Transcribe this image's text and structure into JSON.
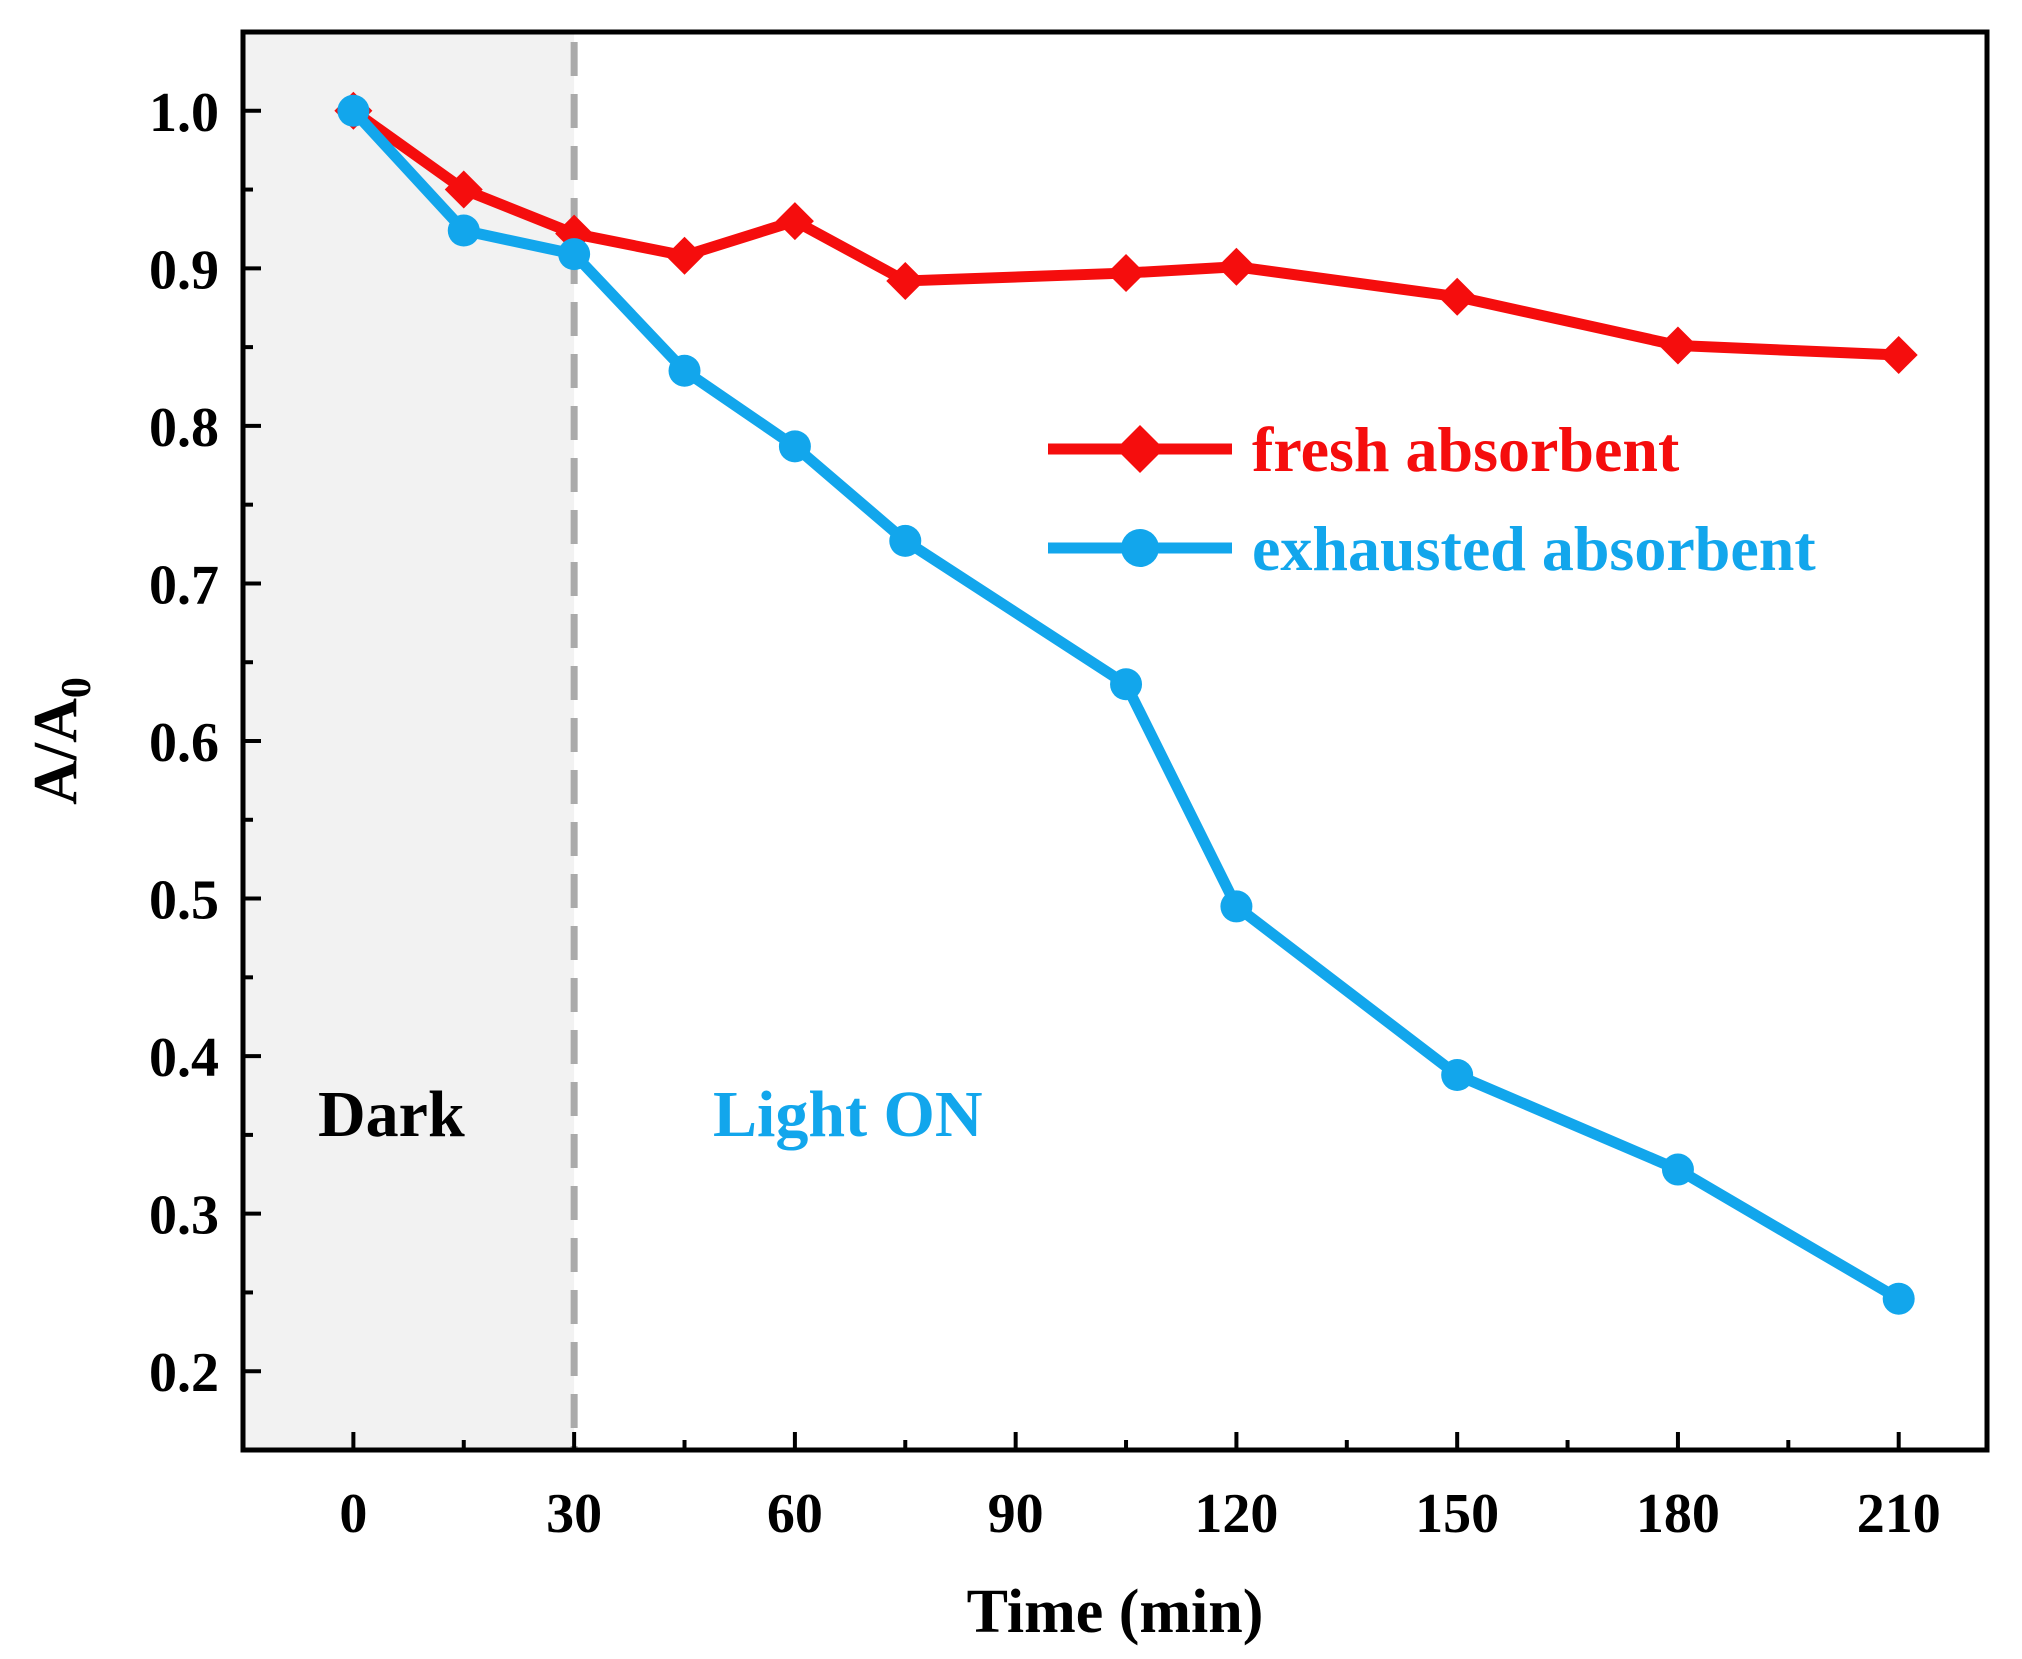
{
  "chart_data": {
    "type": "line",
    "xlabel": "Time (min)",
    "ylabel": "A/A",
    "ylabel_subscript": "0",
    "xlim": [
      -15,
      222
    ],
    "ylim": [
      0.15,
      1.05
    ],
    "x_ticks": [
      0,
      30,
      60,
      90,
      120,
      150,
      180,
      210
    ],
    "y_ticks": [
      0.2,
      0.3,
      0.4,
      0.5,
      0.6,
      0.7,
      0.8,
      0.9,
      1.0
    ],
    "y_tick_labels": [
      "0.2",
      "0.3",
      "0.4",
      "0.5",
      "0.6",
      "0.7",
      "0.8",
      "0.9",
      "1.0"
    ],
    "dark_region": {
      "x_start": -15,
      "x_end": 30,
      "label": "Dark",
      "color": "#f2f2f2",
      "boundary_color": "#aaaaaa"
    },
    "light_region": {
      "label": "Light ON",
      "color": "#12a6ec"
    },
    "legend_position": "upper-right",
    "series": [
      {
        "name": "fresh absorbent",
        "color": "#f50d0d",
        "marker": "diamond",
        "x": [
          0,
          15,
          30,
          45,
          60,
          75,
          105,
          120,
          150,
          180,
          210
        ],
        "y": [
          1.0,
          0.95,
          0.922,
          0.908,
          0.93,
          0.892,
          0.897,
          0.901,
          0.882,
          0.851,
          0.845
        ]
      },
      {
        "name": "exhausted absorbent",
        "color": "#12a6ec",
        "marker": "circle",
        "x": [
          0,
          15,
          30,
          45,
          60,
          75,
          105,
          120,
          150,
          180,
          210
        ],
        "y": [
          1.0,
          0.924,
          0.909,
          0.835,
          0.787,
          0.727,
          0.636,
          0.495,
          0.388,
          0.328,
          0.246
        ]
      }
    ]
  }
}
